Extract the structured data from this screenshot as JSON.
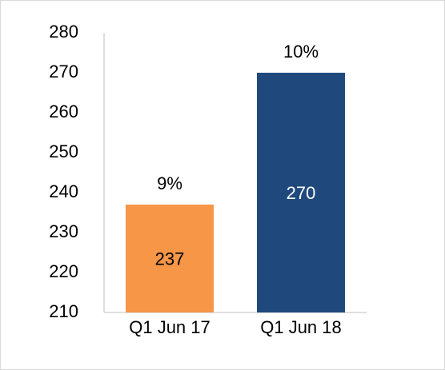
{
  "chart_data": {
    "type": "bar",
    "categories": [
      "Q1 Jun 17",
      "Q1 Jun 18"
    ],
    "values": [
      237,
      270
    ],
    "colors": [
      "#f79646",
      "#1f497d"
    ],
    "label_colors": [
      "#000000",
      "#ffffff"
    ],
    "annotations": [
      "9%",
      "10%"
    ],
    "ylim": [
      210,
      280
    ],
    "yticks": [
      210,
      220,
      230,
      240,
      250,
      260,
      270,
      280
    ],
    "grid": false
  }
}
